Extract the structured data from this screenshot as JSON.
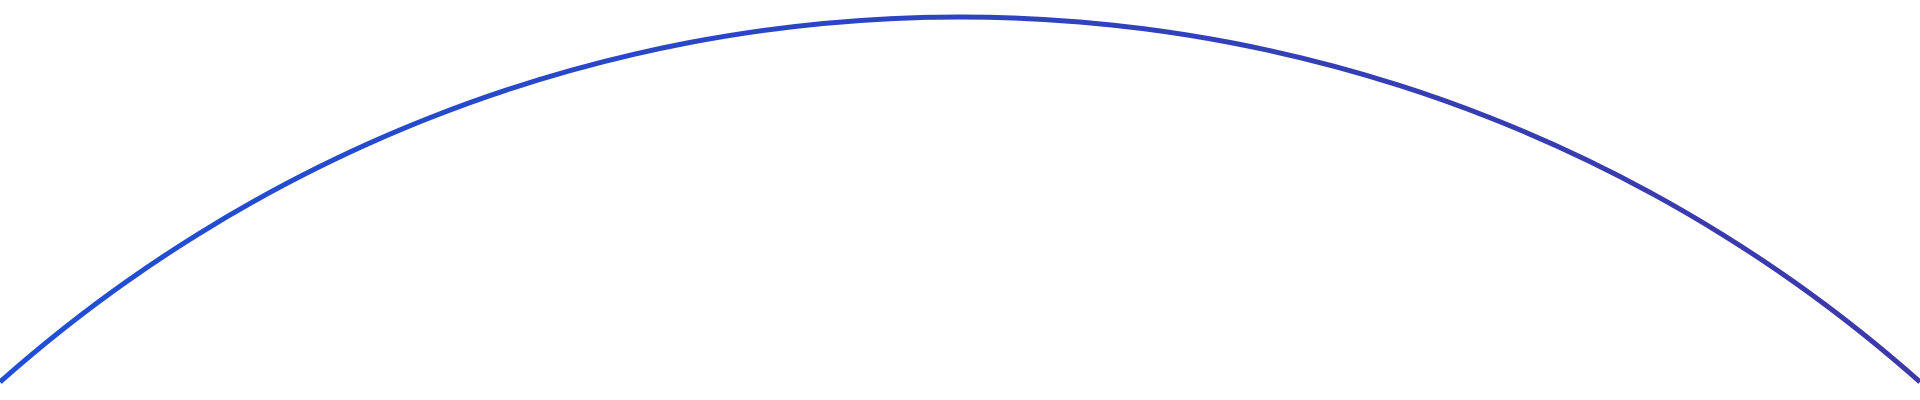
{
  "decoration": {
    "shape": "circle-arc",
    "stroke_color_start": "#1f4fd6",
    "stroke_color_end": "#3d38a8",
    "background": "#ffffff"
  }
}
